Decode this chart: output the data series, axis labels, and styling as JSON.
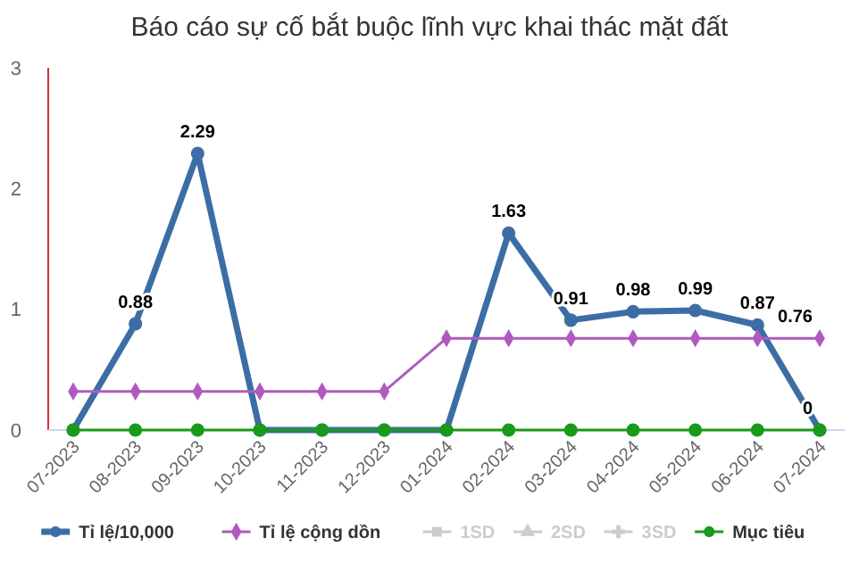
{
  "chart_data": {
    "type": "line",
    "title": "Báo cáo sự cố bắt buộc lĩnh vực khai thác mặt đất",
    "categories": [
      "07-2023",
      "08-2023",
      "09-2023",
      "10-2023",
      "11-2023",
      "12-2023",
      "01-2024",
      "02-2024",
      "03-2024",
      "04-2024",
      "05-2024",
      "06-2024",
      "07-2024"
    ],
    "series": [
      {
        "name": "Tỉ lệ/10,000",
        "color": "#3c6ea5",
        "marker": "circle",
        "values": [
          0,
          0.88,
          2.29,
          0,
          0,
          0,
          0,
          1.63,
          0.91,
          0.98,
          0.99,
          0.87,
          0
        ],
        "value_labels": [
          null,
          "0.88",
          "2.29",
          null,
          null,
          null,
          null,
          "1.63",
          "0.91",
          "0.98",
          "0.99",
          "0.87",
          "0"
        ]
      },
      {
        "name": "Tỉ lệ cộng dồn",
        "color": "#b05ac0",
        "marker": "diamond",
        "values": [
          0.32,
          0.32,
          0.32,
          0.32,
          0.32,
          0.32,
          0.76,
          0.76,
          0.76,
          0.76,
          0.76,
          0.76,
          0.76
        ],
        "value_labels": [
          null,
          null,
          null,
          null,
          null,
          null,
          null,
          null,
          null,
          null,
          null,
          null,
          "0.76"
        ]
      },
      {
        "name": "1SD",
        "color": "#cccccc",
        "marker": "square",
        "values": [
          null,
          null,
          null,
          null,
          null,
          null,
          null,
          null,
          null,
          null,
          null,
          null,
          null
        ]
      },
      {
        "name": "2SD",
        "color": "#cccccc",
        "marker": "triangle",
        "values": [
          null,
          null,
          null,
          null,
          null,
          null,
          null,
          null,
          null,
          null,
          null,
          null,
          null
        ]
      },
      {
        "name": "3SD",
        "color": "#cccccc",
        "marker": "cross",
        "values": [
          null,
          null,
          null,
          null,
          null,
          null,
          null,
          null,
          null,
          null,
          null,
          null,
          null
        ]
      },
      {
        "name": "Mục tiêu",
        "color": "#1a9a1a",
        "marker": "circle",
        "values": [
          0,
          0,
          0,
          0,
          0,
          0,
          0,
          0,
          0,
          0,
          0,
          0,
          0
        ]
      }
    ],
    "ylim": [
      0,
      3
    ],
    "yticks": [
      0,
      1,
      2,
      3
    ],
    "grid": false,
    "legend": "bottom"
  }
}
